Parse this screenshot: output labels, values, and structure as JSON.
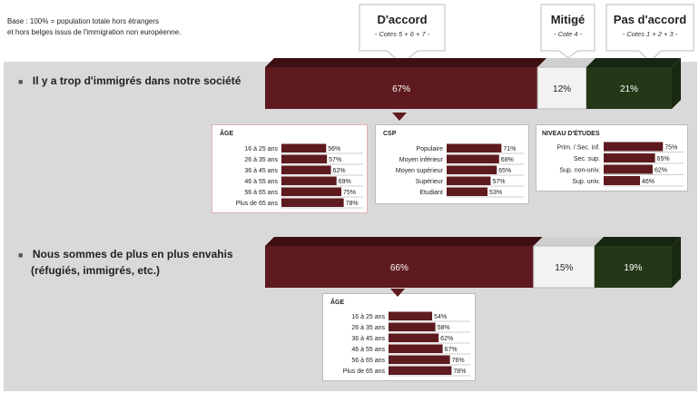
{
  "note": {
    "line1": "Base : 100% = population totale hors étrangers",
    "line2": "et hors belges issus de l'immigration non européenne."
  },
  "header": {
    "accord": {
      "title": "D'accord",
      "sub": "- Cotes 5 + 6 + 7 -"
    },
    "mitige": {
      "title": "Mitigé",
      "sub": "- Cote 4 -"
    },
    "pas_accord": {
      "title": "Pas d'accord",
      "sub": "- Cotes 1 + 2 + 3 -"
    }
  },
  "colors": {
    "accord": "#5e1a1e",
    "mitige": "#f2f2f2",
    "pas_accord": "#243818",
    "panel": "#d9d9d9"
  },
  "chart_data": [
    {
      "type": "bar",
      "statement": "Il y a trop d'immigrés dans notre société",
      "stacked": true,
      "segments": [
        {
          "name": "D'accord",
          "value": 67,
          "label": "67%"
        },
        {
          "name": "Mitigé",
          "value": 12,
          "label": "12%"
        },
        {
          "name": "Pas d'accord",
          "value": 21,
          "label": "21%"
        }
      ],
      "breakdowns": [
        {
          "title": "ÂGE",
          "categories": [
            "16 à 25 ans",
            "26 à 35 ans",
            "36 à 45 ans",
            "46 à 55 ans",
            "56 à 65 ans",
            "Plus de 65 ans"
          ],
          "values": [
            56,
            57,
            62,
            69,
            75,
            78
          ],
          "labels": [
            "56%",
            "57%",
            "62%",
            "69%",
            "75%",
            "78%"
          ]
        },
        {
          "title": "CSP",
          "categories": [
            "Populaire",
            "Moyen inférieur",
            "Moyen supérieur",
            "Supérieur",
            "Etudiant"
          ],
          "values": [
            71,
            68,
            65,
            57,
            53
          ],
          "labels": [
            "71%",
            "68%",
            "65%",
            "57%",
            "53%"
          ]
        },
        {
          "title": "NIVEAU D'ÉTUDES",
          "categories": [
            "Prim. / Sec. inf.",
            "Sec. sup.",
            "Sup. non-univ.",
            "Sup. univ."
          ],
          "values": [
            75,
            65,
            62,
            46
          ],
          "labels": [
            "75%",
            "65%",
            "62%",
            "46%"
          ]
        }
      ]
    },
    {
      "type": "bar",
      "statement_line1": "Nous sommes de plus en plus envahis",
      "statement_line2": "(réfugiés, immigrés, etc.)",
      "stacked": true,
      "segments": [
        {
          "name": "D'accord",
          "value": 66,
          "label": "66%"
        },
        {
          "name": "Mitigé",
          "value": 15,
          "label": "15%"
        },
        {
          "name": "Pas d'accord",
          "value": 19,
          "label": "19%"
        }
      ],
      "breakdowns": [
        {
          "title": "ÂGE",
          "categories": [
            "16 à 25 ans",
            "26 à 35 ans",
            "36 à 45 ans",
            "46 à 55 ans",
            "56 à 65 ans",
            "Plus de 65 ans"
          ],
          "values": [
            54,
            58,
            62,
            67,
            76,
            78
          ],
          "labels": [
            "54%",
            "58%",
            "62%",
            "67%",
            "76%",
            "78%"
          ]
        }
      ]
    }
  ]
}
